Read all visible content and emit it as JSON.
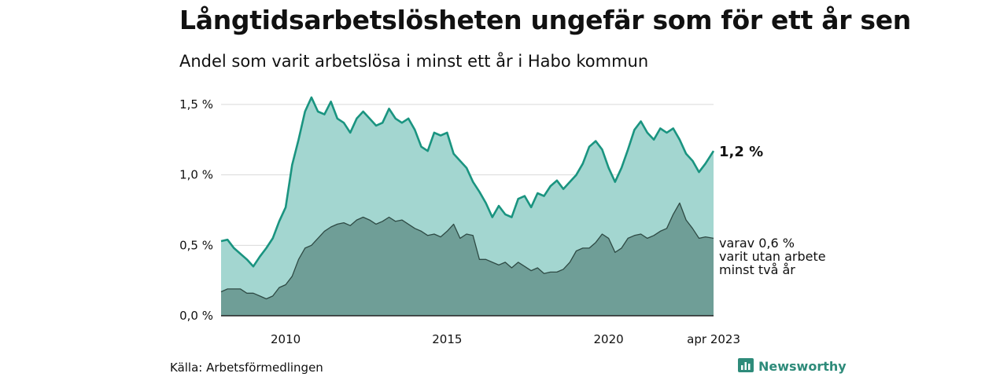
{
  "title": "Långtidsarbetslösheten ungefär som för ett år sen",
  "subtitle": "Andel som varit arbetslösa i minst ett år i Habo kommun",
  "source": "Källa: Arbetsförmedlingen",
  "brand": "Newsworthy",
  "colors": {
    "total_line": "#1a9480",
    "total_fill": "#a3d6d0",
    "long_line": "#2e4a44",
    "long_fill": "#6f9e97",
    "grid": "#d9d9d9"
  },
  "chart_data": {
    "type": "area",
    "title": "Långtidsarbetslösheten ungefär som för ett år sen",
    "subtitle": "Andel som varit arbetslösa i minst ett år i Habo kommun",
    "x_range": [
      "2008-01",
      "2023-04"
    ],
    "ylim": [
      0,
      1.6
    ],
    "y_ticks": [
      {
        "value": 0.0,
        "label": "0,0 %"
      },
      {
        "value": 0.5,
        "label": "0,5 %"
      },
      {
        "value": 1.0,
        "label": "1,0 %"
      },
      {
        "value": 1.5,
        "label": "1,5 %"
      }
    ],
    "x_ticks": [
      {
        "date": "2010-01",
        "label": "2010"
      },
      {
        "date": "2015-01",
        "label": "2015"
      },
      {
        "date": "2020-01",
        "label": "2020"
      },
      {
        "date": "2023-04",
        "label": "apr 2023"
      }
    ],
    "grid": true,
    "series": [
      {
        "name": "total",
        "values": [
          [
            2008.0,
            0.53
          ],
          [
            2008.2,
            0.54
          ],
          [
            2008.4,
            0.48
          ],
          [
            2008.6,
            0.44
          ],
          [
            2008.8,
            0.4
          ],
          [
            2009.0,
            0.35
          ],
          [
            2009.2,
            0.42
          ],
          [
            2009.4,
            0.48
          ],
          [
            2009.6,
            0.55
          ],
          [
            2009.8,
            0.67
          ],
          [
            2010.0,
            0.77
          ],
          [
            2010.2,
            1.07
          ],
          [
            2010.4,
            1.25
          ],
          [
            2010.6,
            1.45
          ],
          [
            2010.8,
            1.55
          ],
          [
            2011.0,
            1.45
          ],
          [
            2011.2,
            1.43
          ],
          [
            2011.4,
            1.52
          ],
          [
            2011.6,
            1.4
          ],
          [
            2011.8,
            1.37
          ],
          [
            2012.0,
            1.3
          ],
          [
            2012.2,
            1.4
          ],
          [
            2012.4,
            1.45
          ],
          [
            2012.6,
            1.4
          ],
          [
            2012.8,
            1.35
          ],
          [
            2013.0,
            1.37
          ],
          [
            2013.2,
            1.47
          ],
          [
            2013.4,
            1.4
          ],
          [
            2013.6,
            1.37
          ],
          [
            2013.8,
            1.4
          ],
          [
            2014.0,
            1.32
          ],
          [
            2014.2,
            1.2
          ],
          [
            2014.4,
            1.17
          ],
          [
            2014.6,
            1.3
          ],
          [
            2014.8,
            1.28
          ],
          [
            2015.0,
            1.3
          ],
          [
            2015.2,
            1.15
          ],
          [
            2015.4,
            1.1
          ],
          [
            2015.6,
            1.05
          ],
          [
            2015.8,
            0.95
          ],
          [
            2016.0,
            0.88
          ],
          [
            2016.2,
            0.8
          ],
          [
            2016.4,
            0.7
          ],
          [
            2016.6,
            0.78
          ],
          [
            2016.8,
            0.72
          ],
          [
            2017.0,
            0.7
          ],
          [
            2017.2,
            0.83
          ],
          [
            2017.4,
            0.85
          ],
          [
            2017.6,
            0.77
          ],
          [
            2017.8,
            0.87
          ],
          [
            2018.0,
            0.85
          ],
          [
            2018.2,
            0.92
          ],
          [
            2018.4,
            0.96
          ],
          [
            2018.6,
            0.9
          ],
          [
            2018.8,
            0.95
          ],
          [
            2019.0,
            1.0
          ],
          [
            2019.2,
            1.08
          ],
          [
            2019.4,
            1.2
          ],
          [
            2019.6,
            1.24
          ],
          [
            2019.8,
            1.18
          ],
          [
            2020.0,
            1.05
          ],
          [
            2020.2,
            0.95
          ],
          [
            2020.4,
            1.05
          ],
          [
            2020.6,
            1.18
          ],
          [
            2020.8,
            1.32
          ],
          [
            2021.0,
            1.38
          ],
          [
            2021.2,
            1.3
          ],
          [
            2021.4,
            1.25
          ],
          [
            2021.6,
            1.33
          ],
          [
            2021.8,
            1.3
          ],
          [
            2022.0,
            1.33
          ],
          [
            2022.2,
            1.25
          ],
          [
            2022.4,
            1.15
          ],
          [
            2022.6,
            1.1
          ],
          [
            2022.8,
            1.02
          ],
          [
            2023.0,
            1.08
          ],
          [
            2023.25,
            1.17
          ]
        ]
      },
      {
        "name": "varav minst två år",
        "values": [
          [
            2008.0,
            0.17
          ],
          [
            2008.2,
            0.19
          ],
          [
            2008.4,
            0.19
          ],
          [
            2008.6,
            0.19
          ],
          [
            2008.8,
            0.16
          ],
          [
            2009.0,
            0.16
          ],
          [
            2009.2,
            0.14
          ],
          [
            2009.4,
            0.12
          ],
          [
            2009.6,
            0.14
          ],
          [
            2009.8,
            0.2
          ],
          [
            2010.0,
            0.22
          ],
          [
            2010.2,
            0.28
          ],
          [
            2010.4,
            0.4
          ],
          [
            2010.6,
            0.48
          ],
          [
            2010.8,
            0.5
          ],
          [
            2011.0,
            0.55
          ],
          [
            2011.2,
            0.6
          ],
          [
            2011.4,
            0.63
          ],
          [
            2011.6,
            0.65
          ],
          [
            2011.8,
            0.66
          ],
          [
            2012.0,
            0.64
          ],
          [
            2012.2,
            0.68
          ],
          [
            2012.4,
            0.7
          ],
          [
            2012.6,
            0.68
          ],
          [
            2012.8,
            0.65
          ],
          [
            2013.0,
            0.67
          ],
          [
            2013.2,
            0.7
          ],
          [
            2013.4,
            0.67
          ],
          [
            2013.6,
            0.68
          ],
          [
            2013.8,
            0.65
          ],
          [
            2014.0,
            0.62
          ],
          [
            2014.2,
            0.6
          ],
          [
            2014.4,
            0.57
          ],
          [
            2014.6,
            0.58
          ],
          [
            2014.8,
            0.56
          ],
          [
            2015.0,
            0.6
          ],
          [
            2015.2,
            0.65
          ],
          [
            2015.4,
            0.55
          ],
          [
            2015.6,
            0.58
          ],
          [
            2015.8,
            0.57
          ],
          [
            2016.0,
            0.4
          ],
          [
            2016.2,
            0.4
          ],
          [
            2016.4,
            0.38
          ],
          [
            2016.6,
            0.36
          ],
          [
            2016.8,
            0.38
          ],
          [
            2017.0,
            0.34
          ],
          [
            2017.2,
            0.38
          ],
          [
            2017.4,
            0.35
          ],
          [
            2017.6,
            0.32
          ],
          [
            2017.8,
            0.34
          ],
          [
            2018.0,
            0.3
          ],
          [
            2018.2,
            0.31
          ],
          [
            2018.4,
            0.31
          ],
          [
            2018.6,
            0.33
          ],
          [
            2018.8,
            0.38
          ],
          [
            2019.0,
            0.46
          ],
          [
            2019.2,
            0.48
          ],
          [
            2019.4,
            0.48
          ],
          [
            2019.6,
            0.52
          ],
          [
            2019.8,
            0.58
          ],
          [
            2020.0,
            0.55
          ],
          [
            2020.2,
            0.45
          ],
          [
            2020.4,
            0.48
          ],
          [
            2020.6,
            0.55
          ],
          [
            2020.8,
            0.57
          ],
          [
            2021.0,
            0.58
          ],
          [
            2021.2,
            0.55
          ],
          [
            2021.4,
            0.57
          ],
          [
            2021.6,
            0.6
          ],
          [
            2021.8,
            0.62
          ],
          [
            2022.0,
            0.72
          ],
          [
            2022.2,
            0.8
          ],
          [
            2022.4,
            0.68
          ],
          [
            2022.6,
            0.62
          ],
          [
            2022.8,
            0.55
          ],
          [
            2023.0,
            0.56
          ],
          [
            2023.25,
            0.55
          ]
        ]
      }
    ],
    "annotations": {
      "total_label": "1,2 %",
      "long_label_lines": [
        "varav 0,6 %",
        "varit utan arbete",
        "minst två år"
      ]
    }
  }
}
